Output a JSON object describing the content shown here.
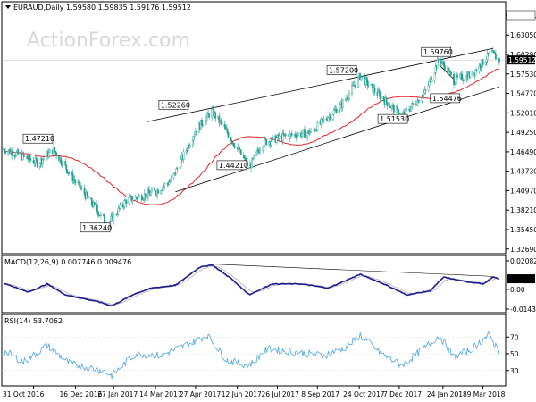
{
  "header": {
    "symbol": "EURAUD,Daily",
    "ohlc": "1.59580 1.59835 1.59176 1.59512"
  },
  "watermark": "ActionForex.com",
  "colors": {
    "up_candle": "#1f9e8f",
    "down_candle": "#1f9e8f",
    "ma": "#e8232a",
    "channel": "#000000",
    "macd": "#1a1a8c",
    "signal": "#c0c0c0",
    "rsi": "#4ea6e8",
    "current_price_bg": "#000000"
  },
  "chart_data": [
    {
      "type": "candlestick",
      "panel": "price",
      "y_ticks": [
        "1.65870",
        "1.63050",
        "1.60290",
        "1.57530",
        "1.54770",
        "1.52010",
        "1.49250",
        "1.46490",
        "1.43730",
        "1.40970",
        "1.38210",
        "1.35450",
        "1.32690"
      ],
      "ylim": [
        1.3269,
        1.6587
      ],
      "last_price_label": "1.59512",
      "annotations": [
        {
          "label": "1.47210",
          "x": "2016-11-20",
          "y": 1.4721
        },
        {
          "label": "1.36240",
          "x": "2017-01-20",
          "y": 1.3624
        },
        {
          "label": "1.52260",
          "x": "2017-04-30",
          "y": 1.5226
        },
        {
          "label": "1.44210",
          "x": "2017-06-25",
          "y": 1.4421
        },
        {
          "label": "1.57200",
          "x": "2017-10-20",
          "y": 1.572
        },
        {
          "label": "1.51530",
          "x": "2017-12-15",
          "y": 1.5153
        },
        {
          "label": "1.59760",
          "x": "2018-01-20",
          "y": 1.5976
        },
        {
          "label": "1.54476",
          "x": "2018-01-22",
          "y": 1.54476
        }
      ],
      "key_points": [
        {
          "x": "2016-10-01",
          "close": 1.468
        },
        {
          "x": "2016-11-05",
          "close": 1.449
        },
        {
          "x": "2016-11-22",
          "close": 1.468
        },
        {
          "x": "2016-12-15",
          "close": 1.424
        },
        {
          "x": "2017-01-20",
          "close": 1.3624
        },
        {
          "x": "2017-02-10",
          "close": 1.396
        },
        {
          "x": "2017-03-14",
          "close": 1.408
        },
        {
          "x": "2017-04-01",
          "close": 1.425
        },
        {
          "x": "2017-04-27",
          "close": 1.495
        },
        {
          "x": "2017-05-15",
          "close": 1.5226
        },
        {
          "x": "2017-06-01",
          "close": 1.492
        },
        {
          "x": "2017-06-25",
          "close": 1.4421
        },
        {
          "x": "2017-07-10",
          "close": 1.478
        },
        {
          "x": "2017-08-01",
          "close": 1.486
        },
        {
          "x": "2017-09-01",
          "close": 1.493
        },
        {
          "x": "2017-10-05",
          "close": 1.532
        },
        {
          "x": "2017-10-25",
          "close": 1.572
        },
        {
          "x": "2017-11-15",
          "close": 1.545
        },
        {
          "x": "2017-12-10",
          "close": 1.5153
        },
        {
          "x": "2018-01-05",
          "close": 1.55
        },
        {
          "x": "2018-01-20",
          "close": 1.5976
        },
        {
          "x": "2018-02-05",
          "close": 1.566
        },
        {
          "x": "2018-02-25",
          "close": 1.575
        },
        {
          "x": "2018-03-18",
          "close": 1.605
        },
        {
          "x": "2018-03-27",
          "close": 1.59512
        }
      ],
      "x_ticks": [
        "31 Oct 2016",
        "16 Dec 2016",
        "27 Jan 2017",
        "14 Mar 2017",
        "27 Apr 2017",
        "12 Jun 2017",
        "26 Jul 2017",
        "8 Sep 2017",
        "24 Oct 2017",
        "7 Dec 2017",
        "24 Jan 2018",
        "9 Mar 2018"
      ]
    },
    {
      "type": "line",
      "panel": "macd",
      "title": "MACD(12,26,9) 0.007746 0.009476",
      "y_ticks": [
        "0.020827",
        "0.00",
        "-0.014386"
      ],
      "ylim": [
        -0.014386,
        0.020827
      ],
      "series": [
        {
          "name": "MACD",
          "points": [
            {
              "x": "2016-10-01",
              "y": 0.004
            },
            {
              "x": "2016-10-25",
              "y": -0.002
            },
            {
              "x": "2016-11-15",
              "y": 0.004
            },
            {
              "x": "2016-12-05",
              "y": -0.004
            },
            {
              "x": "2017-01-10",
              "y": -0.009
            },
            {
              "x": "2017-01-25",
              "y": -0.012
            },
            {
              "x": "2017-02-20",
              "y": -0.003
            },
            {
              "x": "2017-03-10",
              "y": 0.001
            },
            {
              "x": "2017-04-05",
              "y": 0.003
            },
            {
              "x": "2017-05-01",
              "y": 0.016
            },
            {
              "x": "2017-05-15",
              "y": 0.018
            },
            {
              "x": "2017-06-05",
              "y": 0.008
            },
            {
              "x": "2017-06-25",
              "y": -0.004
            },
            {
              "x": "2017-07-20",
              "y": 0.004
            },
            {
              "x": "2017-08-20",
              "y": 0.004
            },
            {
              "x": "2017-09-20",
              "y": 0.001
            },
            {
              "x": "2017-10-25",
              "y": 0.011
            },
            {
              "x": "2017-11-20",
              "y": 0.004
            },
            {
              "x": "2017-12-15",
              "y": -0.004
            },
            {
              "x": "2018-01-10",
              "y": -0.001
            },
            {
              "x": "2018-01-25",
              "y": 0.009
            },
            {
              "x": "2018-02-15",
              "y": 0.006
            },
            {
              "x": "2018-03-10",
              "y": 0.004
            },
            {
              "x": "2018-03-20",
              "y": 0.009
            },
            {
              "x": "2018-03-27",
              "y": 0.0077
            }
          ]
        }
      ]
    },
    {
      "type": "line",
      "panel": "rsi",
      "title": "RSI(14) 53.7062",
      "y_ticks": [
        "70",
        "50",
        "30"
      ],
      "ylim": [
        10,
        90
      ],
      "series": [
        {
          "name": "RSI",
          "points": [
            {
              "x": "2016-10-01",
              "y": 52
            },
            {
              "x": "2016-10-20",
              "y": 40
            },
            {
              "x": "2016-11-15",
              "y": 60
            },
            {
              "x": "2016-12-10",
              "y": 38
            },
            {
              "x": "2017-01-15",
              "y": 30
            },
            {
              "x": "2017-01-25",
              "y": 24
            },
            {
              "x": "2017-02-20",
              "y": 50
            },
            {
              "x": "2017-03-20",
              "y": 48
            },
            {
              "x": "2017-04-20",
              "y": 62
            },
            {
              "x": "2017-05-10",
              "y": 72
            },
            {
              "x": "2017-06-01",
              "y": 42
            },
            {
              "x": "2017-06-25",
              "y": 36
            },
            {
              "x": "2017-07-15",
              "y": 56
            },
            {
              "x": "2017-08-15",
              "y": 52
            },
            {
              "x": "2017-09-15",
              "y": 48
            },
            {
              "x": "2017-10-10",
              "y": 58
            },
            {
              "x": "2017-10-25",
              "y": 72
            },
            {
              "x": "2017-11-20",
              "y": 48
            },
            {
              "x": "2017-12-10",
              "y": 36
            },
            {
              "x": "2018-01-05",
              "y": 58
            },
            {
              "x": "2018-01-20",
              "y": 72
            },
            {
              "x": "2018-02-05",
              "y": 46
            },
            {
              "x": "2018-02-25",
              "y": 56
            },
            {
              "x": "2018-03-15",
              "y": 72
            },
            {
              "x": "2018-03-27",
              "y": 53.7062
            }
          ]
        }
      ]
    }
  ]
}
